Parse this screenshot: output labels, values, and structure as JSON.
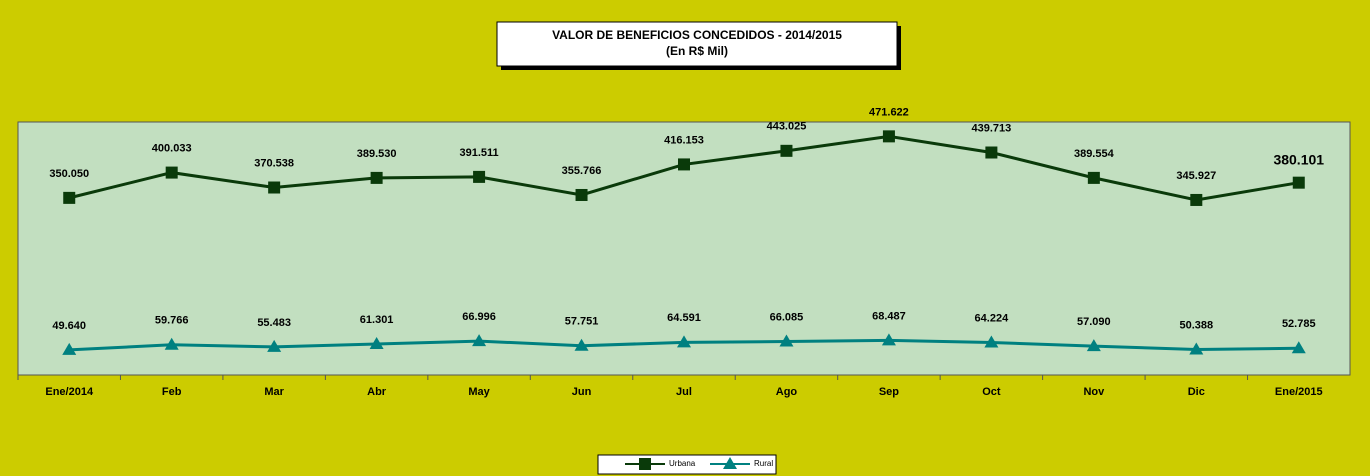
{
  "chart_data": {
    "type": "line",
    "title": "VALOR DE BENEFICIOS CONCEDIDOS - 2014/2015",
    "subtitle": "(En R$ Mil)",
    "categories": [
      "Ene/2014",
      "Feb",
      "Mar",
      "Abr",
      "May",
      "Jun",
      "Jul",
      "Ago",
      "Sep",
      "Oct",
      "Nov",
      "Dic",
      "Ene/2015"
    ],
    "ylim": [
      0,
      500000
    ],
    "series": [
      {
        "name": "Urbana",
        "color": "#0a3a0a",
        "marker": "square",
        "values": [
          350050,
          400033,
          370538,
          389530,
          391511,
          355766,
          416153,
          443025,
          471622,
          439713,
          389554,
          345927,
          380101
        ],
        "value_labels": [
          "350.050",
          "400.033",
          "370.538",
          "389.530",
          "391.511",
          "355.766",
          "416.153",
          "443.025",
          "471.622",
          "439.713",
          "389.554",
          "345.927",
          "380.101"
        ]
      },
      {
        "name": "Rural",
        "color": "#008080",
        "marker": "triangle",
        "values": [
          49640,
          59766,
          55483,
          61301,
          66996,
          57751,
          64591,
          66085,
          68487,
          64224,
          57090,
          50388,
          52785
        ],
        "value_labels": [
          "49.640",
          "59.766",
          "55.483",
          "61.301",
          "66.996",
          "57.751",
          "64.591",
          "66.085",
          "68.487",
          "64.224",
          "57.090",
          "50.388",
          "52.785"
        ]
      }
    ]
  }
}
